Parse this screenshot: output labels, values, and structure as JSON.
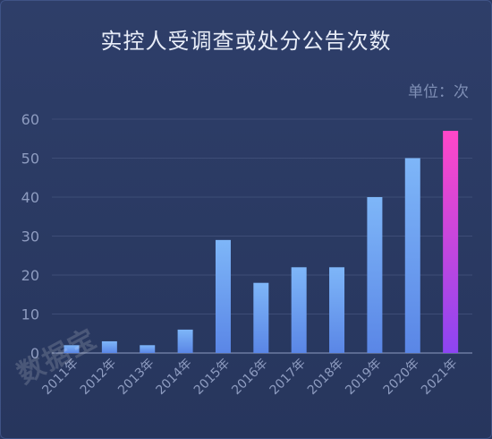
{
  "chart_data": {
    "type": "bar",
    "title": "实控人受调查或处分公告次数",
    "unit_label": "单位：次",
    "categories": [
      "2011年",
      "2012年",
      "2013年",
      "2014年",
      "2015年",
      "2016年",
      "2017年",
      "2018年",
      "2019年",
      "2020年",
      "2021年"
    ],
    "values": [
      2,
      3,
      2,
      6,
      29,
      18,
      22,
      22,
      40,
      50,
      57
    ],
    "ylim": [
      0,
      60
    ],
    "yticks": [
      0,
      10,
      20,
      30,
      40,
      50,
      60
    ],
    "grid": true,
    "colors": {
      "bar_top": "#7eb6f8",
      "bar_bottom": "#5a86e6",
      "highlight_top": "#ff47c8",
      "highlight_bottom": "#8c45f2",
      "grid": "#3e4d77",
      "tick_text": "#8e9cc0"
    }
  },
  "watermark": "数据宝"
}
